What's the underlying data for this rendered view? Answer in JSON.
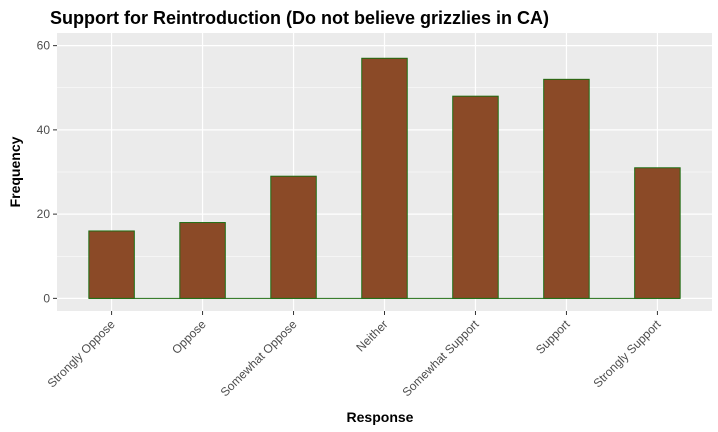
{
  "chart_data": {
    "type": "bar",
    "title": "Support for Reintroduction (Do not believe grizzlies in CA)",
    "xlabel": "Response",
    "ylabel": "Frequency",
    "categories": [
      "Strongly Oppose",
      "Oppose",
      "Somewhat Oppose",
      "Neither",
      "Somewhat Support",
      "Support",
      "Strongly Support"
    ],
    "values": [
      16,
      18,
      29,
      57,
      48,
      52,
      31
    ],
    "ylim": [
      -3,
      63
    ],
    "yticks": [
      0,
      20,
      40,
      60
    ],
    "grid": true,
    "legend": "none",
    "colors": {
      "bar_fill": "#8B4A27",
      "bar_stroke": "#1E6B10",
      "panel_bg": "#EBEBEB",
      "grid": "#FFFFFF"
    }
  }
}
